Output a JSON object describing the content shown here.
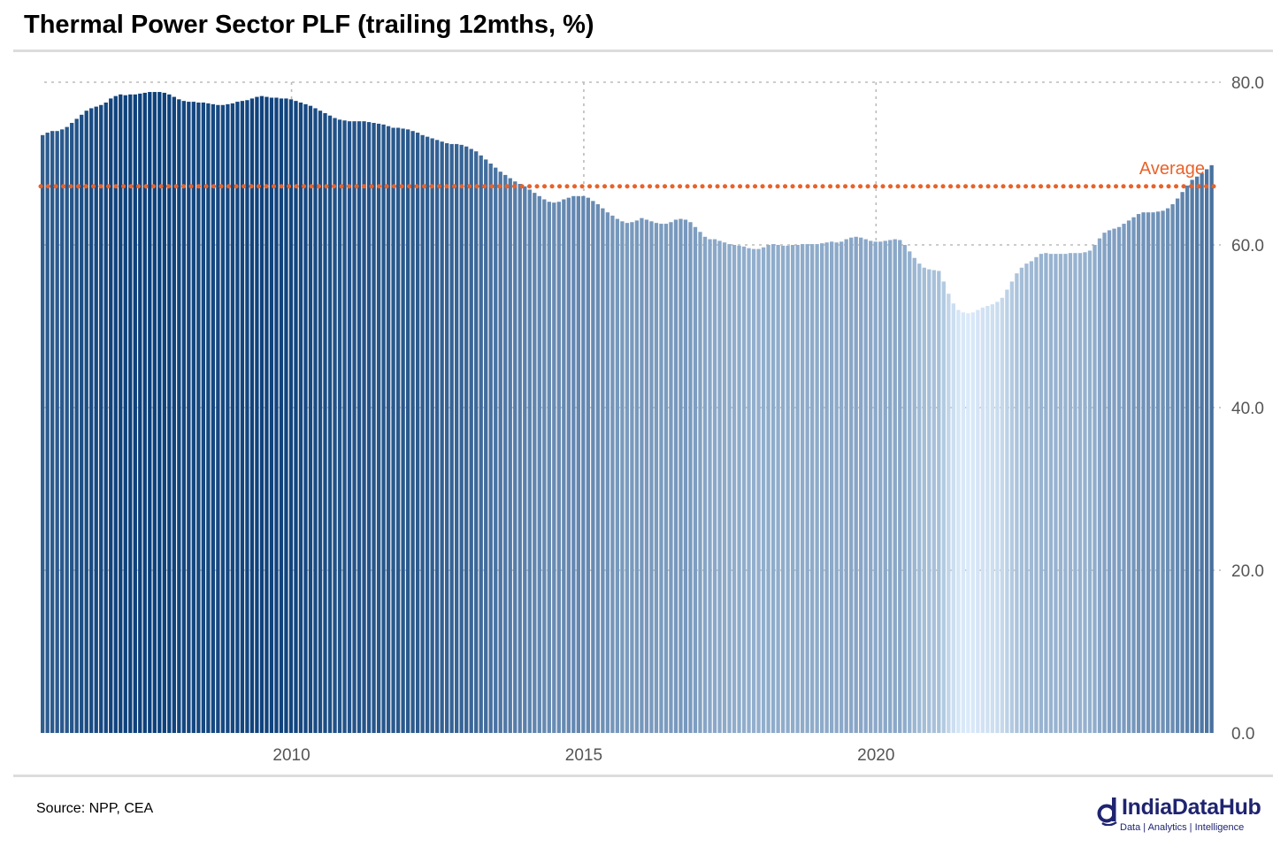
{
  "title": "Thermal Power Sector PLF (trailing 12mths, %)",
  "source": "Source: NPP, CEA",
  "logo": {
    "name": "IndiaDataHub",
    "tagline": "Data | Analytics | Intelligence"
  },
  "colors": {
    "average_line": "#e8622a",
    "bar_dark": "#0b3f7a",
    "bar_light": "#dcebfa",
    "grid": "#bbbbbb"
  },
  "chart_data": {
    "type": "bar",
    "title": "Thermal Power Sector PLF (trailing 12mths, %)",
    "ylim": [
      0,
      80
    ],
    "y_ticks": [
      "80.0",
      "60.0",
      "40.0",
      "20.0",
      "0.0"
    ],
    "x_ticks": [
      "2010",
      "2015",
      "2020"
    ],
    "x_tick_index": [
      51,
      111,
      171
    ],
    "grid": true,
    "y_axis_position": "right",
    "average": {
      "label": "Average",
      "value": 67.2
    },
    "values": [
      73.5,
      73.8,
      74.0,
      74.0,
      74.2,
      74.5,
      75.0,
      75.5,
      76.0,
      76.5,
      76.8,
      77.0,
      77.2,
      77.5,
      78.0,
      78.3,
      78.5,
      78.4,
      78.5,
      78.5,
      78.6,
      78.7,
      78.8,
      78.8,
      78.8,
      78.7,
      78.5,
      78.2,
      77.9,
      77.7,
      77.6,
      77.6,
      77.5,
      77.5,
      77.4,
      77.3,
      77.2,
      77.2,
      77.3,
      77.4,
      77.6,
      77.7,
      77.8,
      78.0,
      78.2,
      78.3,
      78.2,
      78.1,
      78.1,
      78.0,
      78.0,
      77.9,
      77.7,
      77.5,
      77.3,
      77.1,
      76.8,
      76.5,
      76.2,
      75.9,
      75.6,
      75.4,
      75.3,
      75.2,
      75.2,
      75.2,
      75.2,
      75.1,
      75.0,
      74.9,
      74.8,
      74.6,
      74.4,
      74.4,
      74.3,
      74.2,
      74.0,
      73.8,
      73.5,
      73.3,
      73.1,
      72.9,
      72.7,
      72.5,
      72.4,
      72.4,
      72.3,
      72.1,
      71.8,
      71.5,
      71.0,
      70.5,
      70.0,
      69.5,
      69.0,
      68.6,
      68.2,
      67.8,
      67.5,
      67.2,
      66.8,
      66.4,
      66.0,
      65.6,
      65.3,
      65.2,
      65.3,
      65.6,
      65.8,
      66.0,
      66.0,
      66.0,
      65.8,
      65.4,
      65.0,
      64.5,
      64.0,
      63.6,
      63.2,
      62.9,
      62.7,
      62.8,
      63.0,
      63.3,
      63.1,
      62.9,
      62.7,
      62.6,
      62.6,
      62.8,
      63.1,
      63.2,
      63.1,
      62.8,
      62.2,
      61.6,
      61.0,
      60.7,
      60.7,
      60.5,
      60.3,
      60.1,
      60.0,
      59.9,
      59.8,
      59.6,
      59.5,
      59.5,
      59.7,
      60.0,
      60.1,
      60.0,
      59.9,
      59.9,
      60.0,
      60.0,
      60.1,
      60.1,
      60.1,
      60.1,
      60.2,
      60.3,
      60.4,
      60.3,
      60.4,
      60.7,
      60.9,
      61.0,
      60.9,
      60.7,
      60.5,
      60.4,
      60.4,
      60.5,
      60.6,
      60.7,
      60.6,
      60.0,
      59.2,
      58.4,
      57.7,
      57.2,
      57.0,
      56.9,
      56.8,
      55.5,
      54.0,
      52.8,
      52.0,
      51.7,
      51.6,
      51.7,
      52.0,
      52.3,
      52.5,
      52.7,
      53.0,
      53.5,
      54.5,
      55.5,
      56.5,
      57.2,
      57.7,
      58.0,
      58.5,
      58.9,
      59.0,
      58.9,
      58.9,
      58.9,
      58.9,
      59.0,
      59.0,
      59.0,
      59.1,
      59.3,
      60.0,
      60.8,
      61.5,
      61.8,
      62.0,
      62.2,
      62.6,
      63.0,
      63.4,
      63.8,
      64.0,
      64.0,
      64.0,
      64.1,
      64.2,
      64.5,
      65.0,
      65.7,
      66.5,
      67.3,
      68.0,
      68.4,
      68.8,
      69.3,
      69.8
    ]
  }
}
